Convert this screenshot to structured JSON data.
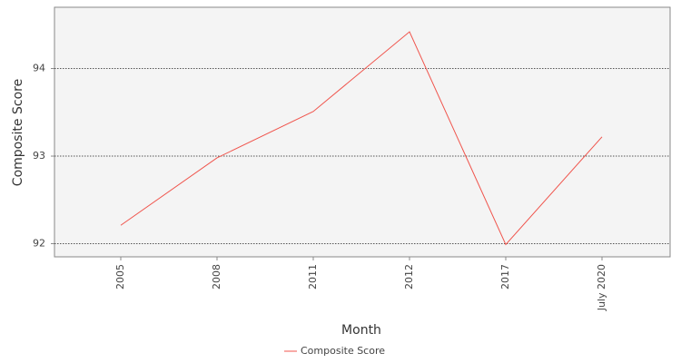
{
  "chart_data": {
    "type": "line",
    "x_label": "Month",
    "y_label": "Composite Score",
    "categories": [
      "2005",
      "2008",
      "2011",
      "2012",
      "2017",
      "July 2020"
    ],
    "series": [
      {
        "name": "Composite Score",
        "color": "#f0544c",
        "values": [
          92.21,
          92.98,
          93.51,
          94.42,
          91.99,
          93.22
        ]
      }
    ],
    "ylim": [
      91.85,
      94.7
    ],
    "yticks": [
      92,
      93,
      94
    ],
    "grid": true
  }
}
